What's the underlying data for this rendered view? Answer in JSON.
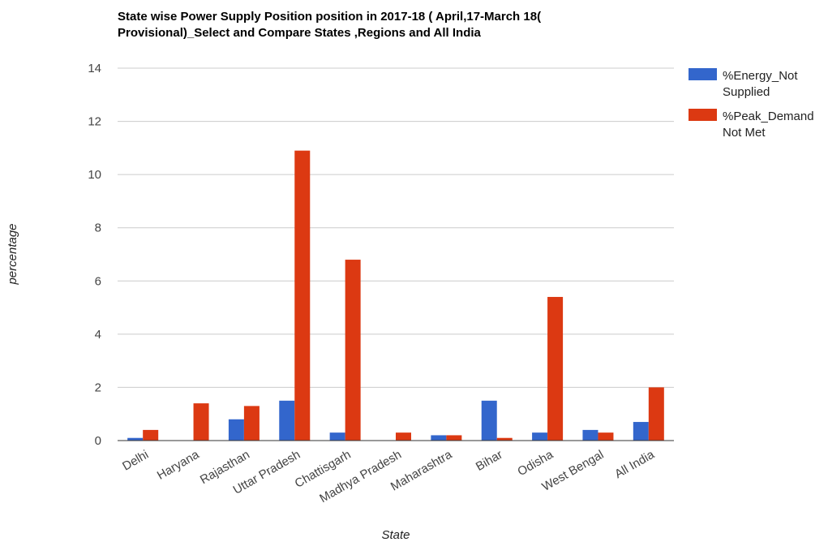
{
  "chart_data": {
    "type": "bar",
    "title_lines": [
      "State wise Power Supply Position position in 2017-18 ( April,17-March 18(",
      "Provisional)_Select and Compare States ,Regions and All India"
    ],
    "xlabel": "State",
    "ylabel": "percentage",
    "ylim": [
      0,
      14
    ],
    "yticks": [
      0,
      2,
      4,
      6,
      8,
      10,
      12,
      14
    ],
    "grid": true,
    "legend_position": "right",
    "categories": [
      "Delhi",
      "Haryana",
      "Rajasthan",
      "Uttar Pradesh",
      "Chattisgarh",
      "Madhya Pradesh",
      "Maharashtra",
      "Bihar",
      "Odisha",
      "West Bengal",
      "All India"
    ],
    "series": [
      {
        "name_lines": [
          "%Energy_Not",
          "Supplied"
        ],
        "color": "#3366cc",
        "values": [
          0.1,
          0.0,
          0.8,
          1.5,
          0.3,
          0.0,
          0.2,
          1.5,
          0.3,
          0.4,
          0.7
        ]
      },
      {
        "name_lines": [
          "%Peak_Demand",
          "Not Met"
        ],
        "color": "#dc3912",
        "values": [
          0.4,
          1.4,
          1.3,
          10.9,
          6.8,
          0.3,
          0.2,
          0.1,
          5.4,
          0.3,
          2.0
        ]
      }
    ]
  }
}
